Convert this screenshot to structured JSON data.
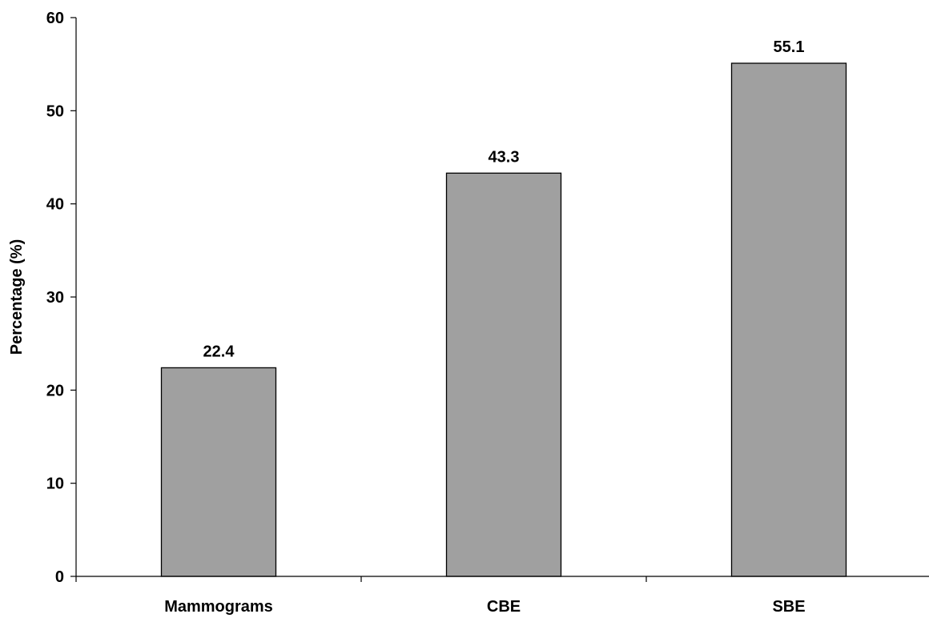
{
  "chart_data": {
    "type": "bar",
    "title": "",
    "xlabel": "",
    "ylabel": "Percentage (%)",
    "categories": [
      "Mammograms",
      "CBE",
      "SBE"
    ],
    "values": [
      22.4,
      43.3,
      55.1
    ],
    "data_labels": [
      "22.4",
      "43.3",
      "55.1"
    ],
    "ylim": [
      0,
      60
    ],
    "yticks": [
      0,
      10,
      20,
      30,
      40,
      50,
      60
    ],
    "ytick_labels": [
      "0",
      "10",
      "20",
      "30",
      "40",
      "50",
      "60"
    ],
    "grid": false,
    "legend": "none",
    "bar_color": "#a0a0a0",
    "bar_edge_color": "#000000"
  }
}
